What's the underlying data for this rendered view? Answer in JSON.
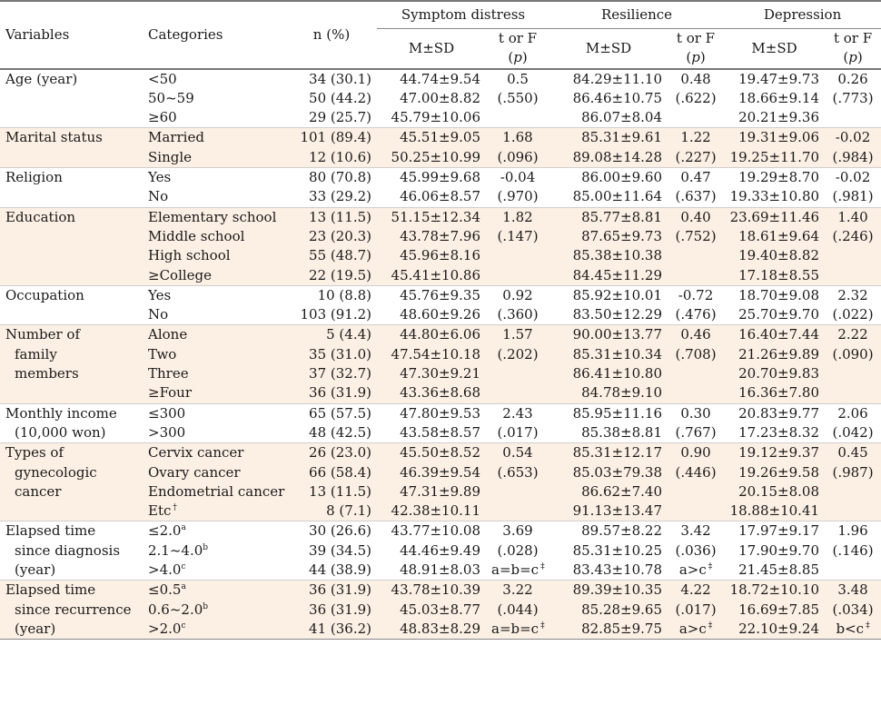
{
  "headers": {
    "variables": "Variables",
    "categories": "Categories",
    "n": "n (%)",
    "groups": [
      "Symptom distress",
      "Resilience",
      "Depression"
    ],
    "msd": "M±SD",
    "tf": "t or F (p)"
  },
  "rows": [
    {
      "variable": [
        "Age (year)"
      ],
      "categories": [
        "<50",
        "50~59",
        "≥60"
      ],
      "n": [
        "34 (30.1)",
        "50 (44.2)",
        "29 (25.7)"
      ],
      "sd_msd": [
        "44.74±9.54",
        "47.00±8.82",
        "45.79±10.06"
      ],
      "sd_tf": [
        "0.5",
        "(.550)"
      ],
      "res_msd": [
        "84.29±11.10",
        "86.46±10.75",
        "86.07±8.04"
      ],
      "res_tf": [
        "0.48",
        "(.622)"
      ],
      "dep_msd": [
        "19.47±9.73",
        "18.66±9.14",
        "20.21±9.36"
      ],
      "dep_tf": [
        "0.26",
        "(.773)"
      ]
    },
    {
      "variable": [
        "Marital status"
      ],
      "categories": [
        "Married",
        "Single"
      ],
      "n": [
        "101 (89.4)",
        "12 (10.6)"
      ],
      "sd_msd": [
        "45.51±9.05",
        "50.25±10.99"
      ],
      "sd_tf": [
        "1.68",
        "(.096)"
      ],
      "res_msd": [
        "85.31±9.61",
        "89.08±14.28"
      ],
      "res_tf": [
        "1.22",
        "(.227)"
      ],
      "dep_msd": [
        "19.31±9.06",
        "19.25±11.70"
      ],
      "dep_tf": [
        "-0.02",
        "(.984)"
      ]
    },
    {
      "variable": [
        "Religion"
      ],
      "categories": [
        "Yes",
        "No"
      ],
      "n": [
        "80 (70.8)",
        "33 (29.2)"
      ],
      "sd_msd": [
        "45.99±9.68",
        "46.06±8.57"
      ],
      "sd_tf": [
        "-0.04",
        "(.970)"
      ],
      "res_msd": [
        "86.00±9.60",
        "85.00±11.64"
      ],
      "res_tf": [
        "0.47",
        "(.637)"
      ],
      "dep_msd": [
        "19.29±8.70",
        "19.33±10.80"
      ],
      "dep_tf": [
        "-0.02",
        "(.981)"
      ]
    },
    {
      "variable": [
        "Education"
      ],
      "categories": [
        "Elementary school",
        "Middle school",
        "High school",
        "≥College"
      ],
      "n": [
        "13 (11.5)",
        "23 (20.3)",
        "55 (48.7)",
        "22 (19.5)"
      ],
      "sd_msd": [
        "51.15±12.34",
        "43.78±7.96",
        "45.96±8.16",
        "45.41±10.86"
      ],
      "sd_tf": [
        "1.82",
        "(.147)"
      ],
      "res_msd": [
        "85.77±8.81",
        "87.65±9.73",
        "85.38±10.38",
        "84.45±11.29"
      ],
      "res_tf": [
        "0.40",
        "(.752)"
      ],
      "dep_msd": [
        "23.69±11.46",
        "18.61±9.64",
        "19.40±8.82",
        "17.18±8.55"
      ],
      "dep_tf": [
        "1.40",
        "(.246)"
      ]
    },
    {
      "variable": [
        "Occupation"
      ],
      "categories": [
        "Yes",
        "No"
      ],
      "n": [
        "10 (8.8)",
        "103 (91.2)"
      ],
      "sd_msd": [
        "45.76±9.35",
        "48.60±9.26"
      ],
      "sd_tf": [
        "0.92",
        "(.360)"
      ],
      "res_msd": [
        "85.92±10.01",
        "83.50±12.29"
      ],
      "res_tf": [
        "-0.72",
        "(.476)"
      ],
      "dep_msd": [
        "18.70±9.08",
        "25.70±9.70"
      ],
      "dep_tf": [
        "2.32",
        "(.022)"
      ]
    },
    {
      "variable": [
        "Number of",
        "family",
        "members"
      ],
      "categories": [
        "Alone",
        "Two",
        "Three",
        "≥Four"
      ],
      "n": [
        "5 (4.4)",
        "35 (31.0)",
        "37 (32.7)",
        "36 (31.9)"
      ],
      "sd_msd": [
        "44.80±6.06",
        "47.54±10.18",
        "47.30±9.21",
        "43.36±8.68"
      ],
      "sd_tf": [
        "1.57",
        "(.202)"
      ],
      "res_msd": [
        "90.00±13.77",
        "85.31±10.34",
        "86.41±10.80",
        "84.78±9.10"
      ],
      "res_tf": [
        "0.46",
        "(.708)"
      ],
      "dep_msd": [
        "16.40±7.44",
        "21.26±9.89",
        "20.70±9.83",
        "16.36±7.80"
      ],
      "dep_tf": [
        "2.22",
        "(.090)"
      ]
    },
    {
      "variable": [
        "Monthly income",
        "(10,000 won)"
      ],
      "categories": [
        "≤300",
        ">300"
      ],
      "n": [
        "65 (57.5)",
        "48 (42.5)"
      ],
      "sd_msd": [
        "47.80±9.53",
        "43.58±8.57"
      ],
      "sd_tf": [
        "2.43",
        "(.017)"
      ],
      "res_msd": [
        "85.95±11.16",
        "85.38±8.81"
      ],
      "res_tf": [
        "0.30",
        "(.767)"
      ],
      "dep_msd": [
        "20.83±9.77",
        "17.23±8.32"
      ],
      "dep_tf": [
        "2.06",
        "(.042)"
      ]
    },
    {
      "variable": [
        "Types of",
        "gynecologic",
        "cancer"
      ],
      "categories": [
        "Cervix cancer",
        "Ovary cancer",
        "Endometrial cancer",
        "Etc†"
      ],
      "n": [
        "26 (23.0)",
        "66 (58.4)",
        "13 (11.5)",
        "8 (7.1)"
      ],
      "sd_msd": [
        "45.50±8.52",
        "46.39±9.54",
        "47.31±9.89",
        "42.38±10.11"
      ],
      "sd_tf": [
        "0.54",
        "(.653)"
      ],
      "res_msd": [
        "85.31±12.17",
        "85.03±79.38",
        "86.62±7.40",
        "91.13±13.47"
      ],
      "res_tf": [
        "0.90",
        "(.446)"
      ],
      "dep_msd": [
        "19.12±9.37",
        "19.26±9.58",
        "20.15±8.08",
        "18.88±10.41"
      ],
      "dep_tf": [
        "0.45",
        "(.987)"
      ]
    },
    {
      "variable": [
        "Elapsed time",
        "since diagnosis",
        "(year)"
      ],
      "categories": [
        "≤2.0ᵃ",
        "2.1~4.0ᵇ",
        ">4.0ᶜ"
      ],
      "n": [
        "30 (26.6)",
        "39 (34.5)",
        "44 (38.9)"
      ],
      "sd_msd": [
        "43.77±10.08",
        "44.46±9.49",
        "48.91±8.03"
      ],
      "sd_tf": [
        "3.69",
        "(.028)",
        "a=b=c‡"
      ],
      "res_msd": [
        "89.57±8.22",
        "85.31±10.25",
        "83.43±10.78"
      ],
      "res_tf": [
        "3.42",
        "(.036)",
        "a>c‡"
      ],
      "dep_msd": [
        "17.97±9.17",
        "17.90±9.70",
        "21.45±8.85"
      ],
      "dep_tf": [
        "1.96",
        "(.146)"
      ]
    },
    {
      "variable": [
        "Elapsed time",
        "since recurrence",
        "(year)"
      ],
      "categories": [
        "≤0.5ᵃ",
        "0.6~2.0ᵇ",
        ">2.0ᶜ"
      ],
      "n": [
        "36 (31.9)",
        "36 (31.9)",
        "41 (36.2)"
      ],
      "sd_msd": [
        "43.78±10.39",
        "45.03±8.77",
        "48.83±8.29"
      ],
      "sd_tf": [
        "3.22",
        "(.044)",
        "a=b=c‡"
      ],
      "res_msd": [
        "89.39±10.35",
        "85.28±9.65",
        "82.85±9.75"
      ],
      "res_tf": [
        "4.22",
        "(.017)",
        "a>c‡"
      ],
      "dep_msd": [
        "18.72±10.10",
        "16.69±7.85",
        "22.10±9.24"
      ],
      "dep_tf": [
        "3.48",
        "(.034)",
        "b<c‡"
      ]
    }
  ],
  "colors": {
    "shade": "#fcefe4",
    "rule": "#777777"
  }
}
